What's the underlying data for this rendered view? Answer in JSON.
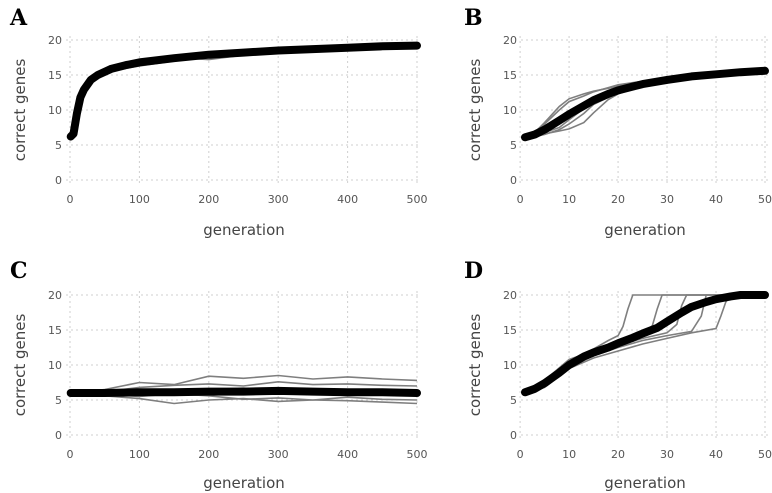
{
  "chart_data": [
    {
      "panel": "A",
      "type": "line",
      "xlabel": "generation",
      "ylabel": "correct genes",
      "xlim": [
        0,
        500
      ],
      "ylim": [
        0,
        20
      ],
      "x_ticks": [
        0,
        100,
        200,
        300,
        400,
        500
      ],
      "y_ticks": [
        0,
        5,
        10,
        15,
        20
      ],
      "grid": true,
      "series": [
        {
          "role": "mean",
          "x": [
            1,
            5,
            10,
            15,
            20,
            30,
            40,
            60,
            80,
            100,
            150,
            200,
            250,
            300,
            350,
            400,
            450,
            500
          ],
          "values": [
            6.2,
            6.6,
            9.5,
            11.8,
            12.9,
            14.3,
            15.0,
            15.9,
            16.4,
            16.8,
            17.4,
            17.9,
            18.2,
            18.5,
            18.7,
            18.9,
            19.1,
            19.2
          ]
        },
        {
          "role": "replicate",
          "x": [
            1,
            10,
            20,
            40,
            60,
            100,
            150,
            200,
            300,
            400,
            500
          ],
          "values": [
            6.0,
            9.0,
            12.5,
            14.8,
            15.6,
            16.3,
            17.0,
            17.5,
            18.3,
            18.8,
            18.9
          ]
        },
        {
          "role": "replicate",
          "x": [
            1,
            10,
            20,
            40,
            60,
            100,
            150,
            200,
            300,
            400,
            500
          ],
          "values": [
            6.4,
            9.8,
            13.2,
            15.3,
            16.1,
            17.0,
            17.7,
            18.2,
            18.7,
            19.1,
            19.4
          ]
        },
        {
          "role": "replicate",
          "x": [
            1,
            10,
            20,
            40,
            60,
            100,
            150,
            200,
            300,
            400,
            500
          ],
          "values": [
            6.1,
            9.3,
            12.7,
            14.9,
            15.8,
            16.6,
            17.3,
            17.6,
            18.4,
            18.9,
            19.2
          ]
        },
        {
          "role": "replicate",
          "x": [
            1,
            10,
            20,
            40,
            60,
            100,
            150,
            200,
            300,
            400,
            500
          ],
          "values": [
            6.3,
            9.6,
            13.0,
            15.1,
            16.0,
            16.9,
            17.5,
            17.2,
            18.5,
            19.0,
            19.0
          ]
        }
      ]
    },
    {
      "panel": "B",
      "type": "line",
      "xlabel": "generation",
      "ylabel": "correct genes",
      "xlim": [
        1,
        50
      ],
      "ylim": [
        0,
        20
      ],
      "x_ticks": [
        0,
        10,
        20,
        30,
        40,
        50
      ],
      "y_ticks": [
        0,
        5,
        10,
        15,
        20
      ],
      "grid": true,
      "series": [
        {
          "role": "mean",
          "x": [
            1,
            3,
            5,
            8,
            10,
            13,
            15,
            18,
            20,
            25,
            30,
            35,
            40,
            45,
            50
          ],
          "values": [
            6.1,
            6.5,
            7.2,
            8.5,
            9.4,
            10.6,
            11.4,
            12.3,
            12.8,
            13.7,
            14.3,
            14.8,
            15.1,
            15.4,
            15.6
          ]
        },
        {
          "role": "replicate",
          "x": [
            1,
            3,
            5,
            8,
            10,
            13,
            15,
            18,
            20,
            25,
            30,
            35,
            40,
            45,
            50
          ],
          "values": [
            6.0,
            6.8,
            8.2,
            10.5,
            11.6,
            12.3,
            12.7,
            13.1,
            13.4,
            14.0,
            14.5,
            14.8,
            15.0,
            15.2,
            15.3
          ]
        },
        {
          "role": "replicate",
          "x": [
            1,
            3,
            5,
            8,
            10,
            13,
            15,
            18,
            20,
            25,
            30,
            35,
            40,
            45,
            50
          ],
          "values": [
            6.1,
            6.2,
            6.5,
            7.2,
            8.0,
            9.5,
            10.8,
            11.8,
            12.5,
            13.6,
            14.2,
            14.7,
            15.1,
            15.5,
            15.8
          ]
        },
        {
          "role": "replicate",
          "x": [
            1,
            3,
            5,
            8,
            10,
            13,
            15,
            18,
            20,
            25,
            30,
            35,
            40,
            45,
            50
          ],
          "values": [
            6.2,
            6.4,
            6.8,
            7.5,
            8.6,
            10.2,
            11.2,
            12.2,
            12.9,
            13.8,
            14.4,
            14.9,
            15.3,
            15.6,
            15.9
          ]
        },
        {
          "role": "replicate",
          "x": [
            1,
            3,
            5,
            8,
            10,
            13,
            15,
            18,
            20,
            25,
            30,
            35,
            40,
            45,
            50
          ],
          "values": [
            6.0,
            6.9,
            8.0,
            10.0,
            11.2,
            12.0,
            12.6,
            13.2,
            13.6,
            14.1,
            14.6,
            15.0,
            15.2,
            15.4,
            15.5
          ]
        },
        {
          "role": "replicate",
          "x": [
            1,
            3,
            5,
            8,
            10,
            13,
            15,
            18,
            20,
            25,
            30,
            35,
            40,
            45,
            50
          ],
          "values": [
            6.1,
            6.3,
            6.6,
            7.0,
            7.3,
            8.2,
            9.6,
            11.5,
            12.3,
            13.5,
            14.2,
            14.6,
            15.0,
            15.3,
            15.4
          ]
        }
      ]
    },
    {
      "panel": "C",
      "type": "line",
      "xlabel": "generation",
      "ylabel": "correct genes",
      "xlim": [
        0,
        500
      ],
      "ylim": [
        0,
        20
      ],
      "x_ticks": [
        0,
        100,
        200,
        300,
        400,
        500
      ],
      "y_ticks": [
        0,
        5,
        10,
        15,
        20
      ],
      "grid": true,
      "series": [
        {
          "role": "mean",
          "x": [
            1,
            50,
            100,
            150,
            200,
            250,
            300,
            350,
            400,
            450,
            500
          ],
          "values": [
            6.0,
            6.0,
            6.1,
            6.1,
            6.2,
            6.2,
            6.3,
            6.2,
            6.1,
            6.1,
            6.0
          ]
        },
        {
          "role": "replicate",
          "x": [
            1,
            50,
            100,
            150,
            200,
            250,
            300,
            350,
            400,
            450,
            500
          ],
          "values": [
            6.0,
            6.5,
            7.5,
            7.2,
            8.4,
            8.1,
            8.5,
            8.0,
            8.3,
            8.0,
            7.8
          ]
        },
        {
          "role": "replicate",
          "x": [
            1,
            50,
            100,
            150,
            200,
            250,
            300,
            350,
            400,
            450,
            500
          ],
          "values": [
            6.0,
            6.2,
            6.8,
            7.1,
            7.3,
            7.0,
            7.6,
            7.2,
            7.3,
            7.1,
            7.0
          ]
        },
        {
          "role": "replicate",
          "x": [
            1,
            50,
            100,
            150,
            200,
            250,
            300,
            350,
            400,
            450,
            500
          ],
          "values": [
            6.0,
            5.6,
            5.2,
            4.5,
            5.0,
            5.2,
            4.8,
            5.0,
            5.4,
            5.1,
            5.0
          ]
        },
        {
          "role": "replicate",
          "x": [
            1,
            50,
            100,
            150,
            200,
            250,
            300,
            350,
            400,
            450,
            500
          ],
          "values": [
            6.0,
            5.8,
            5.5,
            5.9,
            5.6,
            5.1,
            5.3,
            5.0,
            4.9,
            4.7,
            4.5
          ]
        },
        {
          "role": "replicate",
          "x": [
            1,
            50,
            100,
            150,
            200,
            250,
            300,
            350,
            400,
            450,
            500
          ],
          "values": [
            6.0,
            6.1,
            6.4,
            6.0,
            6.5,
            6.7,
            6.2,
            6.4,
            5.9,
            6.3,
            6.0
          ]
        }
      ]
    },
    {
      "panel": "D",
      "type": "line",
      "xlabel": "generation",
      "ylabel": "correct genes",
      "xlim": [
        1,
        50
      ],
      "ylim": [
        0,
        20
      ],
      "x_ticks": [
        0,
        10,
        20,
        30,
        40,
        50
      ],
      "y_ticks": [
        0,
        5,
        10,
        15,
        20
      ],
      "grid": true,
      "series": [
        {
          "role": "mean",
          "x": [
            1,
            3,
            5,
            8,
            10,
            13,
            15,
            18,
            20,
            23,
            25,
            28,
            30,
            33,
            35,
            38,
            40,
            43,
            45,
            48,
            50
          ],
          "values": [
            6.1,
            6.6,
            7.4,
            8.9,
            10.0,
            11.2,
            11.8,
            12.5,
            13.1,
            13.9,
            14.5,
            15.3,
            16.2,
            17.5,
            18.3,
            19.0,
            19.4,
            19.8,
            20.0,
            20.0,
            20.0
          ]
        },
        {
          "role": "replicate",
          "x": [
            1,
            5,
            10,
            15,
            18,
            20,
            21,
            22,
            23,
            25,
            30,
            40,
            50
          ],
          "values": [
            6.0,
            7.5,
            10.5,
            12.3,
            13.5,
            14.2,
            15.5,
            18.0,
            20.0,
            20.0,
            20.0,
            20.0,
            20.0
          ]
        },
        {
          "role": "replicate",
          "x": [
            1,
            5,
            10,
            15,
            20,
            25,
            27,
            28,
            29,
            30,
            40,
            50
          ],
          "values": [
            6.1,
            7.8,
            10.8,
            12.0,
            13.2,
            14.5,
            15.6,
            18.0,
            20.0,
            20.0,
            20.0,
            20.0
          ]
        },
        {
          "role": "replicate",
          "x": [
            1,
            5,
            10,
            15,
            20,
            25,
            30,
            32,
            33,
            34,
            40,
            50
          ],
          "values": [
            6.0,
            7.0,
            10.0,
            11.5,
            12.8,
            13.8,
            14.6,
            15.8,
            18.5,
            20.0,
            20.0,
            20.0
          ]
        },
        {
          "role": "replicate",
          "x": [
            1,
            5,
            10,
            15,
            20,
            25,
            30,
            35,
            37,
            38,
            40,
            50
          ],
          "values": [
            6.2,
            7.2,
            9.8,
            11.3,
            12.5,
            13.5,
            14.2,
            14.8,
            17.0,
            20.0,
            20.0,
            20.0
          ]
        },
        {
          "role": "replicate",
          "x": [
            1,
            5,
            10,
            15,
            20,
            25,
            30,
            35,
            40,
            41,
            42,
            43,
            50
          ],
          "values": [
            6.0,
            6.8,
            9.5,
            11.0,
            12.0,
            13.0,
            13.8,
            14.6,
            15.2,
            17.0,
            19.0,
            20.0,
            20.0
          ]
        }
      ]
    }
  ]
}
